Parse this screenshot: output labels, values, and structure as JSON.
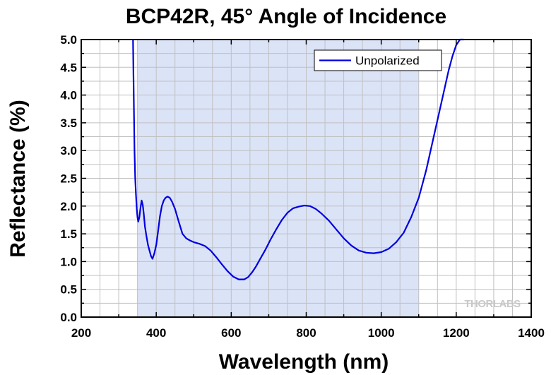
{
  "chart_data": {
    "type": "line",
    "title": "BCP42R, 45° Angle of Incidence",
    "xlabel": "Wavelength (nm)",
    "ylabel": "Reflectance (%)",
    "xlim": [
      200,
      1400
    ],
    "ylim": [
      0.0,
      5.0
    ],
    "xticks": [
      "200",
      "400",
      "600",
      "800",
      "1000",
      "1200",
      "1400"
    ],
    "yticks": [
      "0.0",
      "0.5",
      "1.0",
      "1.5",
      "2.0",
      "2.5",
      "3.0",
      "3.5",
      "4.0",
      "4.5",
      "5.0"
    ],
    "grid": true,
    "legend_position": "top-right",
    "shaded_band": {
      "x_start": 350,
      "x_end": 1100,
      "color": "#dbe3f7"
    },
    "series": [
      {
        "name": "Unpolarized",
        "color": "#0000e0",
        "x": [
          338,
          340,
          342,
          344,
          346,
          348,
          350,
          352,
          355,
          358,
          361,
          364,
          367,
          370,
          374,
          378,
          382,
          386,
          390,
          395,
          400,
          405,
          410,
          415,
          420,
          425,
          430,
          436,
          442,
          450,
          460,
          470,
          480,
          490,
          500,
          515,
          530,
          545,
          560,
          575,
          590,
          605,
          620,
          635,
          645,
          655,
          665,
          675,
          690,
          705,
          720,
          735,
          750,
          765,
          780,
          795,
          810,
          825,
          840,
          860,
          880,
          900,
          920,
          940,
          960,
          980,
          1000,
          1020,
          1040,
          1060,
          1080,
          1100,
          1110,
          1120,
          1130,
          1140,
          1150,
          1160,
          1170,
          1180,
          1190,
          1200,
          1210,
          1220
        ],
        "y": [
          5.0,
          4.0,
          3.0,
          2.5,
          2.2,
          1.95,
          1.8,
          1.72,
          1.8,
          1.97,
          2.1,
          2.02,
          1.85,
          1.63,
          1.45,
          1.3,
          1.2,
          1.1,
          1.05,
          1.15,
          1.3,
          1.55,
          1.82,
          2.0,
          2.1,
          2.15,
          2.17,
          2.15,
          2.08,
          1.95,
          1.72,
          1.5,
          1.42,
          1.38,
          1.35,
          1.32,
          1.28,
          1.2,
          1.08,
          0.95,
          0.83,
          0.73,
          0.68,
          0.68,
          0.72,
          0.8,
          0.9,
          1.02,
          1.2,
          1.4,
          1.58,
          1.75,
          1.88,
          1.96,
          1.99,
          2.01,
          2.0,
          1.95,
          1.87,
          1.74,
          1.58,
          1.42,
          1.29,
          1.2,
          1.16,
          1.15,
          1.17,
          1.23,
          1.35,
          1.52,
          1.8,
          2.15,
          2.4,
          2.65,
          2.95,
          3.25,
          3.55,
          3.85,
          4.15,
          4.45,
          4.7,
          4.9,
          5.0,
          5.0
        ]
      }
    ]
  },
  "watermark": "THORLABS"
}
